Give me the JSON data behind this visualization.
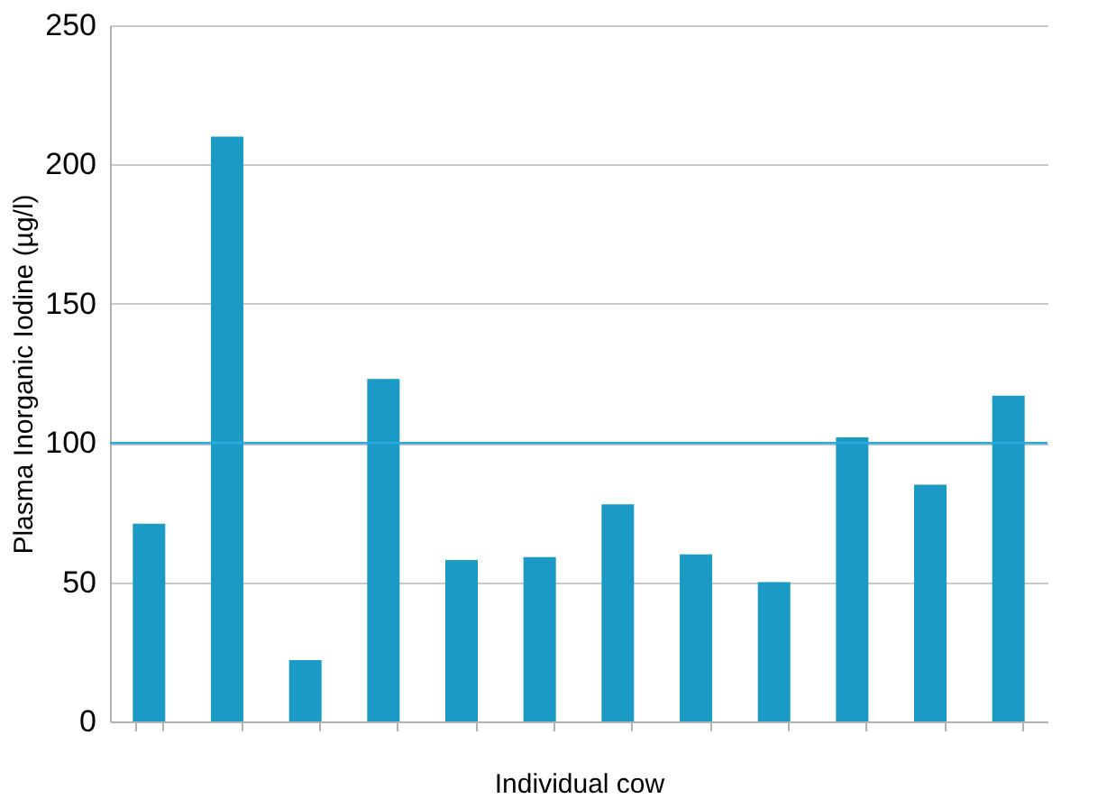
{
  "chart_data": {
    "type": "bar",
    "xlabel": "Individual cow",
    "ylabel": "Plasma Inorganic Iodine (µg/l)",
    "categories": [
      null,
      null,
      null,
      null,
      null,
      null,
      null,
      null,
      null,
      null,
      null,
      null
    ],
    "values": [
      71,
      210,
      22,
      123,
      58,
      59,
      78,
      60,
      50,
      102,
      85,
      117
    ],
    "color": "#1a9ac4",
    "ylim": [
      0,
      250
    ],
    "yticks": [
      0,
      50,
      100,
      150,
      200,
      250
    ],
    "grid": "y",
    "ref_lines": [
      {
        "axis": "y",
        "value": 100,
        "color": "#29abe2"
      }
    ]
  }
}
